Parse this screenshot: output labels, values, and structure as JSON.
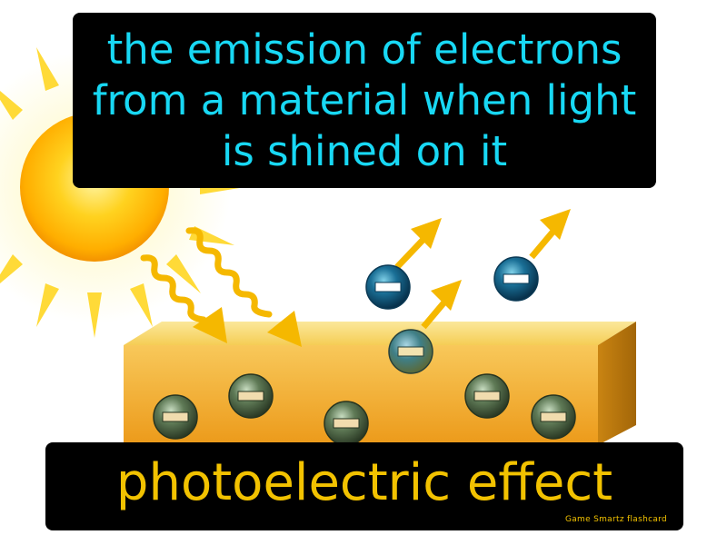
{
  "definition": "the emission of electrons from a material when light is shined on it",
  "term": "photoelectric effect",
  "brand": "Game Smartz flashcard",
  "colors": {
    "definition_text": "#18d8f4",
    "term_text": "#f2c200",
    "box_background": "#000000",
    "arrow": "#f5b800",
    "material_top": "#f7d86a",
    "material_front": "#f0a820"
  },
  "icons": [
    "sun-icon",
    "light-wave-icon",
    "electron-icon",
    "emission-arrow-icon"
  ]
}
